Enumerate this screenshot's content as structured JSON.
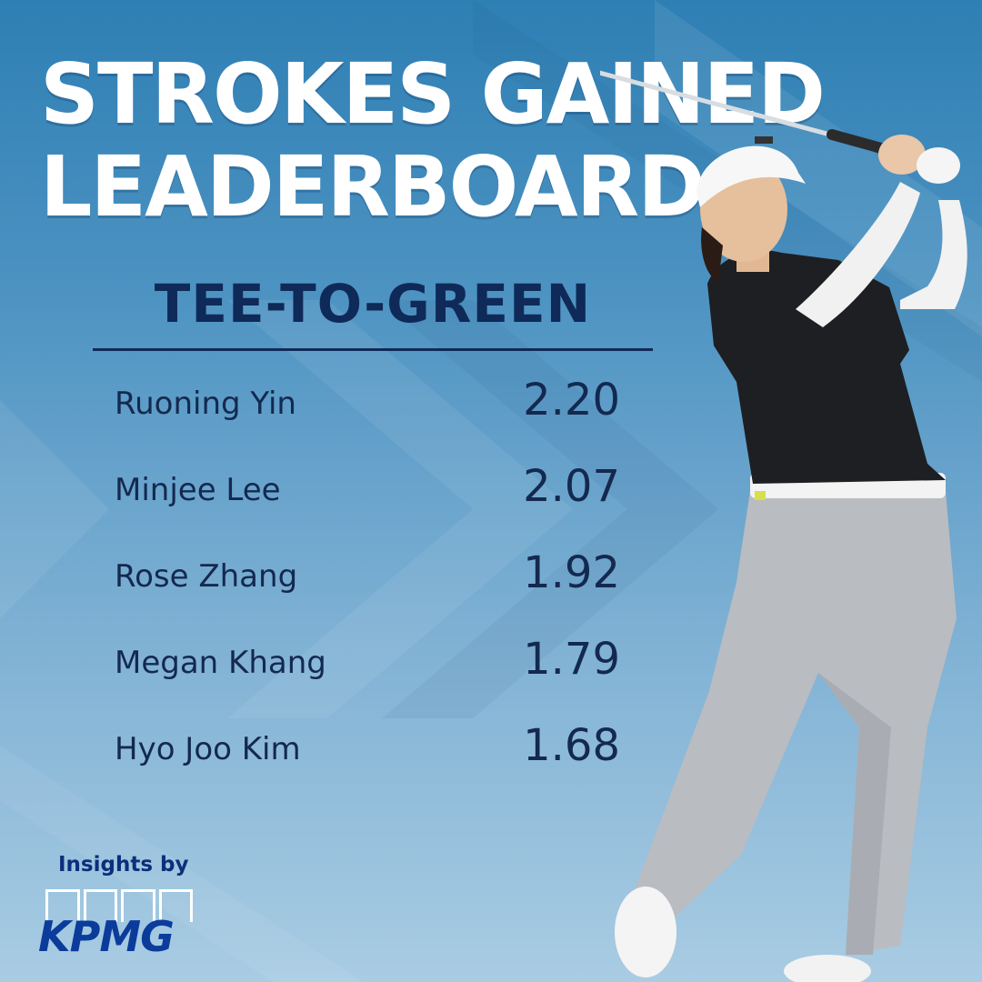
{
  "title": {
    "line1": "STROKES GAINED",
    "line2": "LEADERBOARD"
  },
  "category": "TEE-TO-GREEN",
  "leaderboard": [
    {
      "name": "Ruoning Yin",
      "value": "2.20"
    },
    {
      "name": "Minjee Lee",
      "value": "2.07"
    },
    {
      "name": "Rose Zhang",
      "value": "1.92"
    },
    {
      "name": "Megan Khang",
      "value": "1.79"
    },
    {
      "name": "Hyo Joo Kim",
      "value": "1.68"
    }
  ],
  "sponsor": {
    "label": "Insights by",
    "brand": "KPMG"
  },
  "colors": {
    "background": "#4d93c2",
    "text": "#0f2a58",
    "title": "#ffffff",
    "brand": "#0b3c9b"
  }
}
